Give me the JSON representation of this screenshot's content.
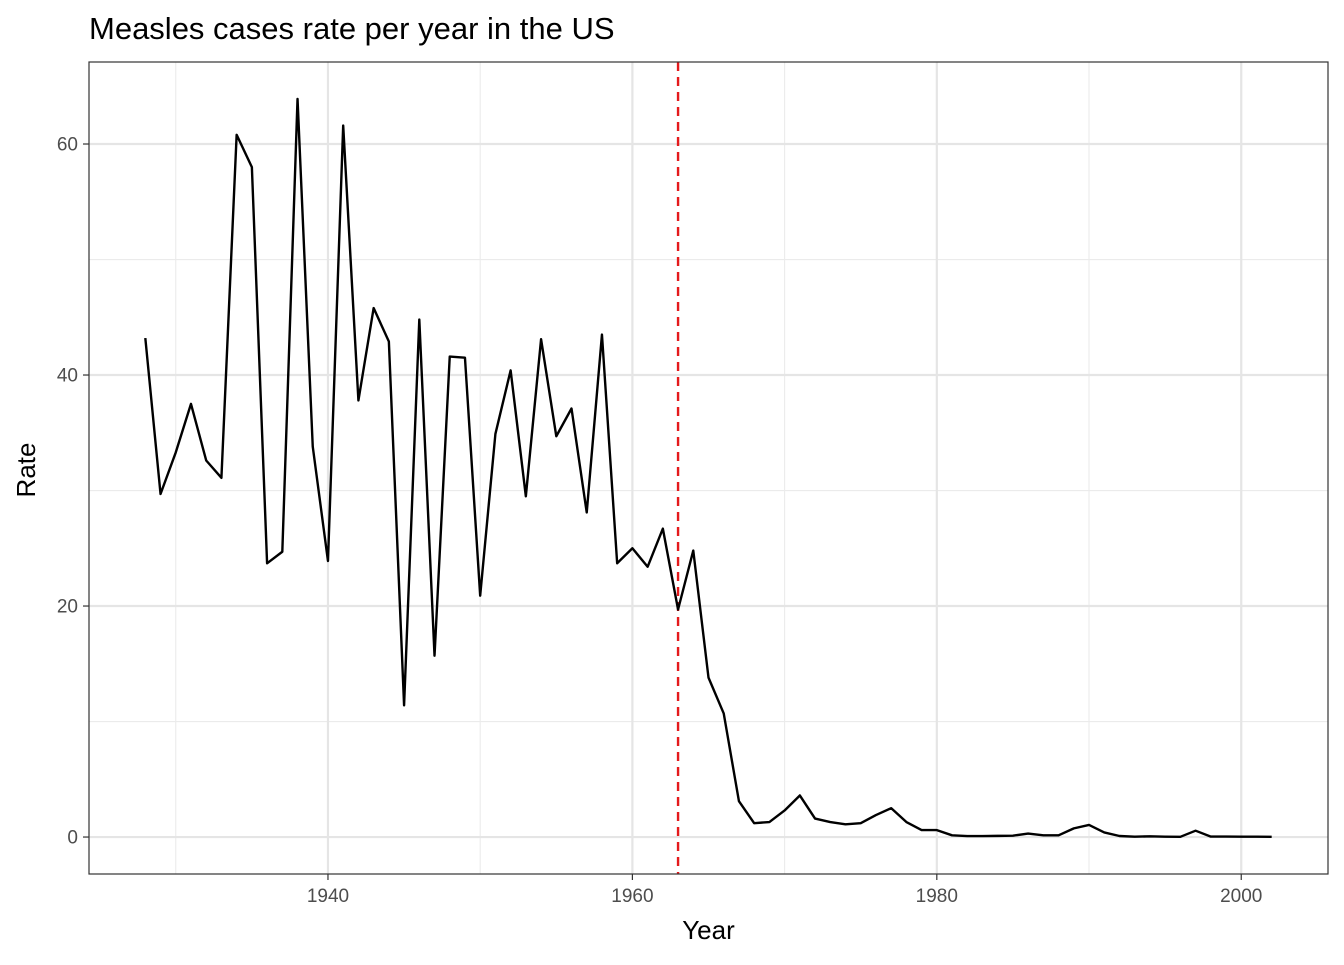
{
  "chart_data": {
    "type": "line",
    "title": "Measles cases rate per year in the US",
    "xlabel": "Year",
    "ylabel": "Rate",
    "xlim": [
      1924.3,
      2005.7
    ],
    "ylim": [
      -3.2,
      67.1
    ],
    "x_ticks": [
      1940,
      1960,
      1980,
      2000
    ],
    "x_tick_labels": [
      "1940",
      "1960",
      "1980",
      "2000"
    ],
    "y_ticks": [
      0,
      20,
      40,
      60
    ],
    "y_tick_labels": [
      "0",
      "20",
      "40",
      "60"
    ],
    "grid": true,
    "legend": "none",
    "line_color": "#000000",
    "reference_line": {
      "x": 1963,
      "style": "dashed",
      "color": "#e41a1c"
    },
    "series": [
      {
        "x": [
          1928,
          1929,
          1930,
          1931,
          1932,
          1933,
          1934,
          1935,
          1936,
          1937,
          1938,
          1939,
          1940,
          1941,
          1942,
          1943,
          1944,
          1945,
          1946,
          1947,
          1948,
          1949,
          1950,
          1951,
          1952,
          1953,
          1954,
          1955,
          1956,
          1957,
          1958,
          1959,
          1960,
          1961,
          1962,
          1963,
          1964,
          1965,
          1966,
          1967,
          1968,
          1969,
          1970,
          1971,
          1972,
          1973,
          1974,
          1975,
          1976,
          1977,
          1978,
          1979,
          1980,
          1981,
          1982,
          1983,
          1984,
          1985,
          1986,
          1987,
          1988,
          1989,
          1990,
          1991,
          1992,
          1993,
          1994,
          1995,
          1996,
          1997,
          1998,
          1999,
          2000,
          2001,
          2002
        ],
        "values": [
          43.2,
          29.7,
          33.3,
          37.5,
          32.6,
          31.1,
          60.8,
          58.0,
          23.7,
          24.7,
          63.9,
          33.8,
          23.9,
          61.6,
          37.8,
          45.8,
          42.9,
          11.4,
          44.8,
          15.7,
          41.6,
          41.5,
          20.9,
          34.9,
          40.4,
          29.5,
          43.1,
          34.7,
          37.1,
          28.1,
          43.5,
          23.7,
          25.0,
          23.4,
          26.7,
          19.7,
          24.8,
          13.8,
          10.7,
          3.1,
          1.2,
          1.3,
          2.3,
          3.6,
          1.6,
          1.3,
          1.1,
          1.2,
          1.9,
          2.5,
          1.3,
          0.6,
          0.6,
          0.15,
          0.08,
          0.08,
          0.1,
          0.12,
          0.3,
          0.15,
          0.15,
          0.75,
          1.05,
          0.4,
          0.09,
          0.03,
          0.06,
          0.03,
          0.02,
          0.55,
          0.04,
          0.04,
          0.03,
          0.03,
          0.02
        ]
      }
    ]
  }
}
